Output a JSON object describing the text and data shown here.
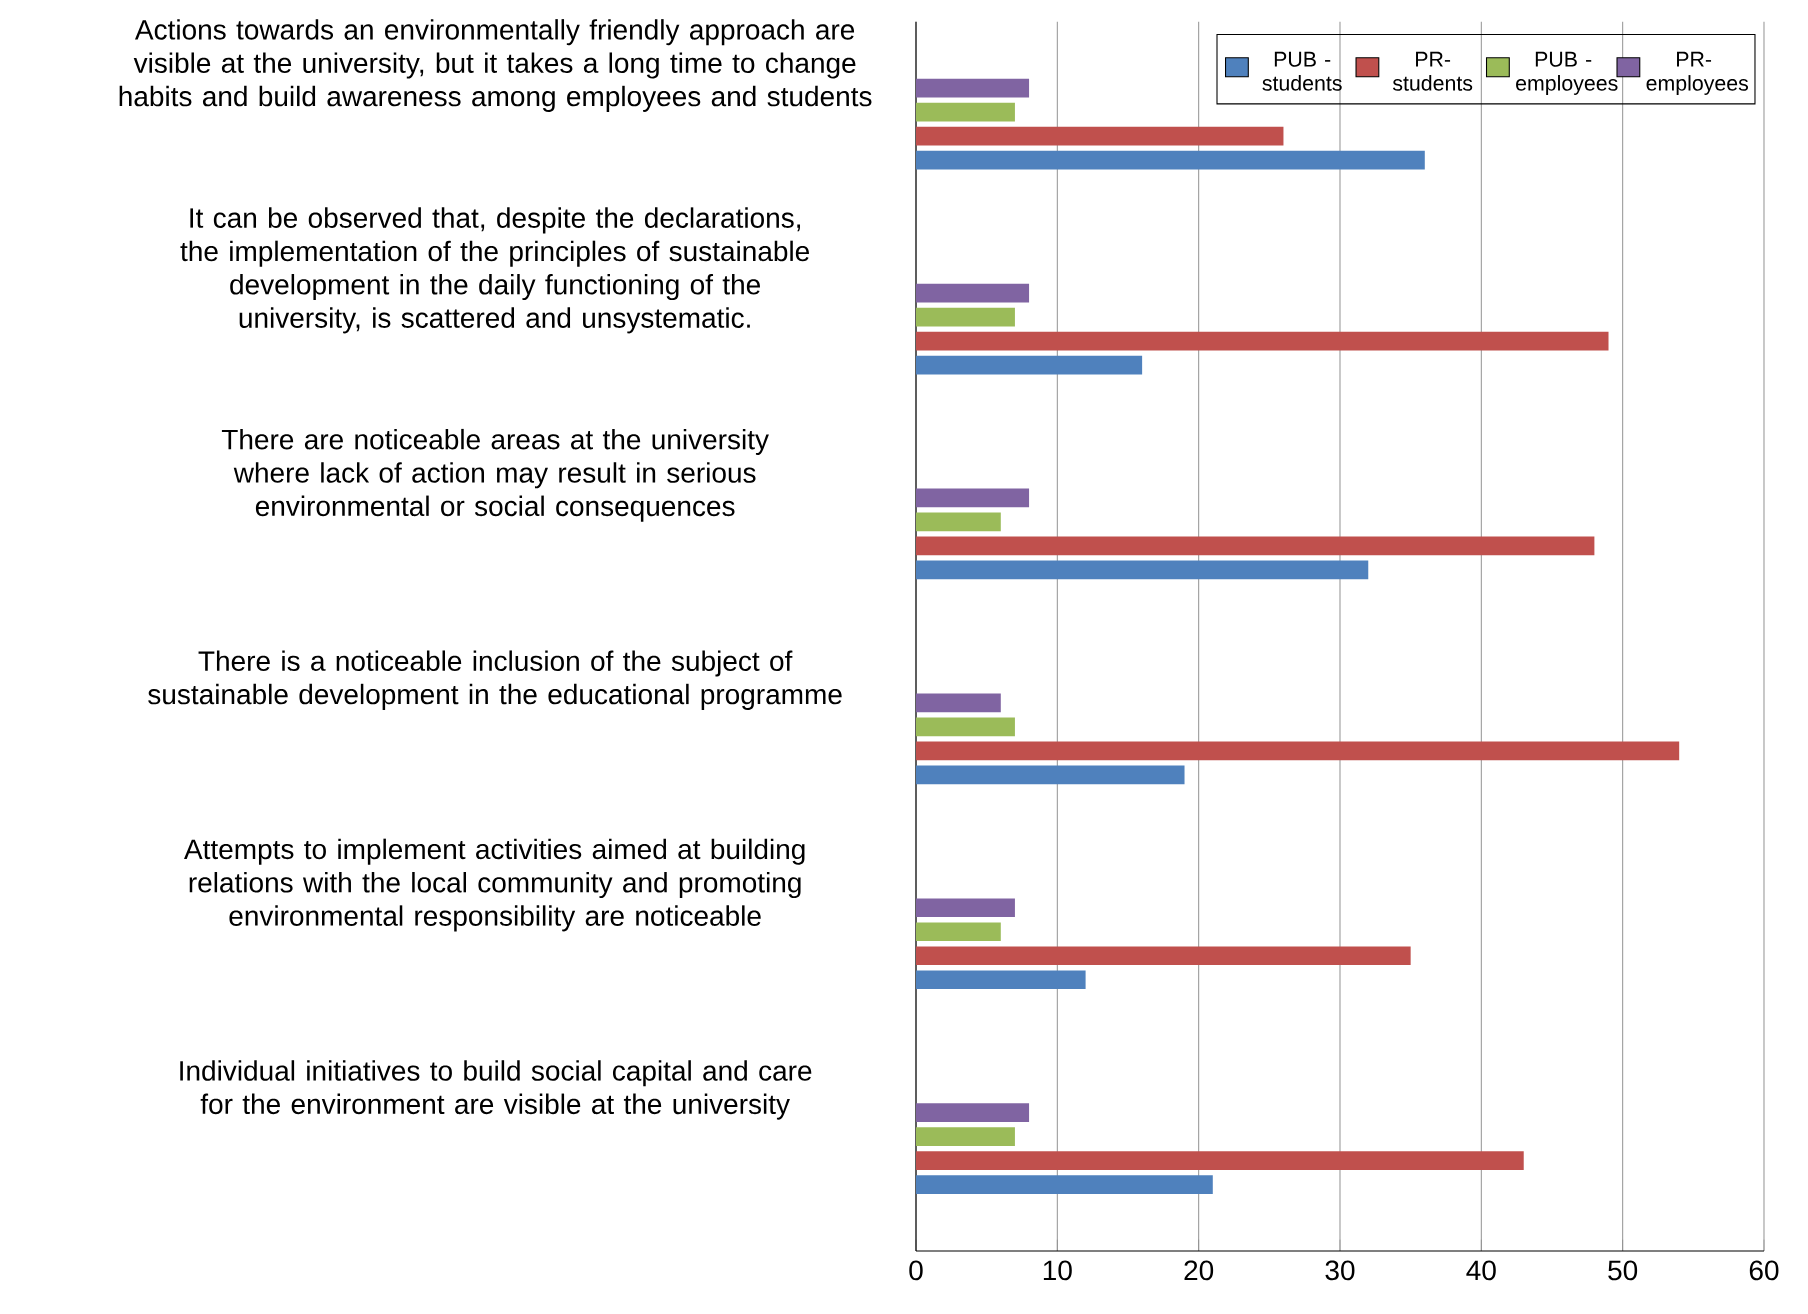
{
  "chart_data": {
    "type": "bar",
    "orientation": "horizontal",
    "categories": [
      "Actions towards an environmentally friendly approach are visible at the university, but it takes a long time to change habits and build awareness among employees and students",
      "It can be observed that, despite the declarations, the implementation of the principles of sustainable development in the daily functioning of the university, is scattered and unsystematic.",
      "There are noticeable areas at the university where lack of action may result in serious environmental or social consequences",
      "There is a noticeable inclusion of the subject of sustainable development in the educational programme",
      "Attempts to implement activities aimed at building relations with the local community and promoting environmental responsibility are noticeable",
      "Individual initiatives to build social capital and care for the environment are visible at the university"
    ],
    "series": [
      {
        "name": "PUB - students",
        "color": "#4f81bd",
        "values": [
          36,
          16,
          32,
          19,
          12,
          21
        ]
      },
      {
        "name": "PR- students",
        "color": "#c0504d",
        "values": [
          26,
          49,
          48,
          54,
          35,
          43
        ]
      },
      {
        "name": "PUB - employees",
        "color": "#9bbb59",
        "values": [
          7,
          7,
          6,
          7,
          6,
          7
        ]
      },
      {
        "name": "PR- employees",
        "color": "#8064a2",
        "values": [
          8,
          8,
          8,
          6,
          7,
          8
        ]
      }
    ],
    "xlim": [
      0,
      60
    ],
    "xticks": [
      0,
      10,
      20,
      30,
      40,
      50,
      60
    ],
    "grid": "x",
    "legend": "top right"
  }
}
